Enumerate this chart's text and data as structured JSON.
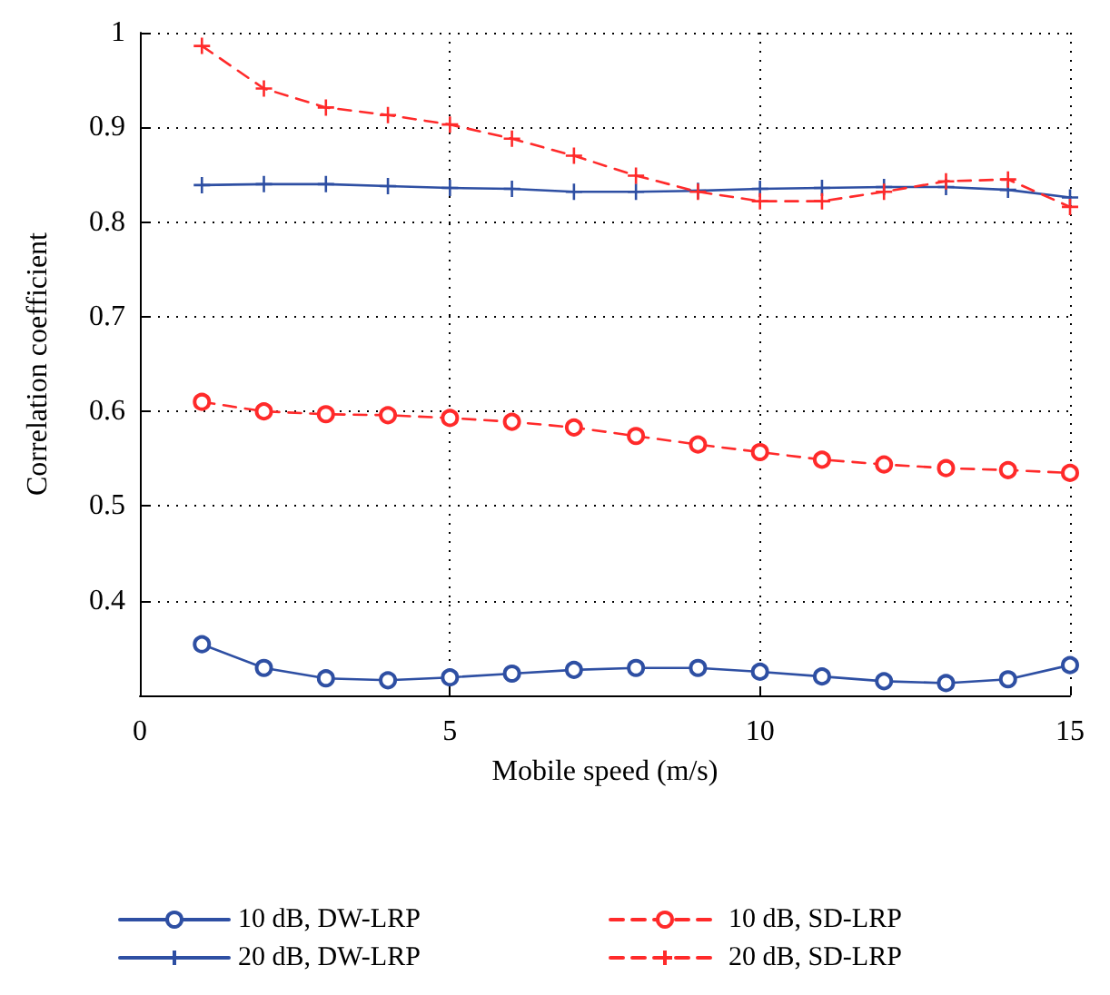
{
  "chart_data": {
    "type": "line",
    "xlabel": "Mobile speed (m/s)",
    "ylabel": "Correlation coefficient",
    "x": [
      1,
      2,
      3,
      4,
      5,
      6,
      7,
      8,
      9,
      10,
      11,
      12,
      13,
      14,
      15
    ],
    "xlim": [
      0,
      15
    ],
    "xticks": [
      0,
      5,
      10,
      15
    ],
    "ylim": [
      0.3,
      1
    ],
    "yticks": [
      0.4,
      0.5,
      0.6,
      0.7,
      0.8,
      0.9,
      1
    ],
    "grid": true,
    "legend": "bottom",
    "series": [
      {
        "name": "10 dB, DW-LRP",
        "color": "#2e4fa3",
        "marker": "circle",
        "line_style": "solid",
        "values": [
          0.354,
          0.329,
          0.318,
          0.316,
          0.319,
          0.323,
          0.327,
          0.329,
          0.329,
          0.325,
          0.32,
          0.315,
          0.313,
          0.317,
          0.332
        ]
      },
      {
        "name": "20 dB, DW-LRP",
        "color": "#2e4fa3",
        "marker": "cross",
        "line_style": "solid",
        "values": [
          0.839,
          0.84,
          0.84,
          0.838,
          0.836,
          0.835,
          0.832,
          0.832,
          0.833,
          0.835,
          0.836,
          0.837,
          0.837,
          0.834,
          0.826
        ]
      },
      {
        "name": "10 dB, SD-LRP",
        "color": "#ff2a2a",
        "marker": "circle",
        "line_style": "dashed",
        "values": [
          0.61,
          0.6,
          0.597,
          0.596,
          0.593,
          0.589,
          0.583,
          0.574,
          0.565,
          0.557,
          0.549,
          0.544,
          0.54,
          0.538,
          0.535
        ]
      },
      {
        "name": "20 dB, SD-LRP",
        "color": "#ff2a2a",
        "marker": "cross",
        "line_style": "dashed",
        "values": [
          0.986,
          0.941,
          0.921,
          0.913,
          0.903,
          0.888,
          0.87,
          0.849,
          0.832,
          0.822,
          0.822,
          0.832,
          0.843,
          0.845,
          0.816
        ]
      }
    ]
  }
}
